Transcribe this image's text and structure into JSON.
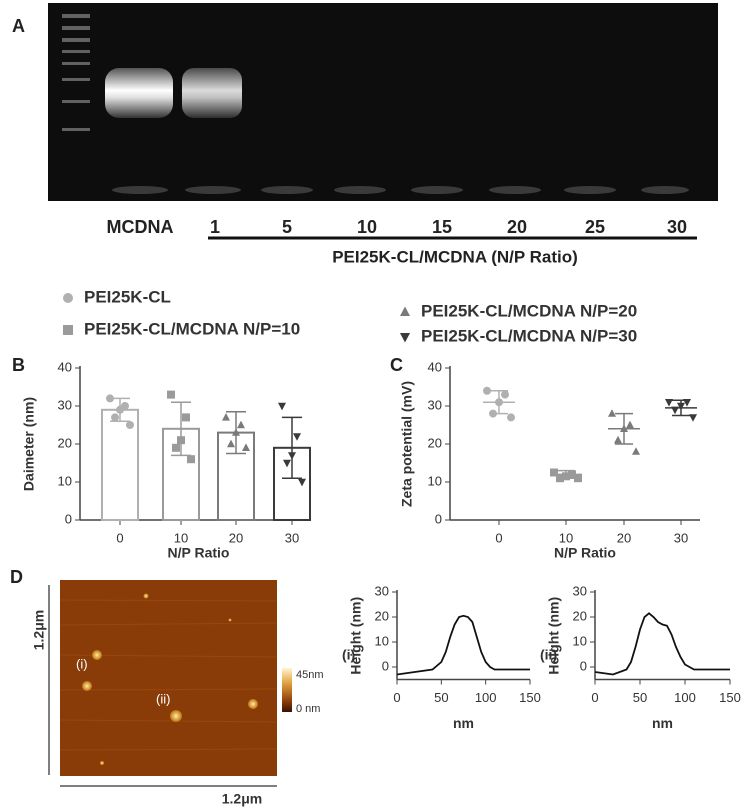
{
  "panels": [
    "A",
    "B",
    "C",
    "D"
  ],
  "gel": {
    "lanes": [
      "MCDNA",
      "1",
      "5",
      "10",
      "15",
      "20",
      "25",
      "30"
    ],
    "caption": "PEI25K-CL/MCDNA  (N/P Ratio)"
  },
  "legend": [
    {
      "name": "PEI25K-CL",
      "marker": "circle",
      "color": "#b0b0b0"
    },
    {
      "name": "PEI25K-CL/MCDNA N/P=10",
      "marker": "square",
      "color": "#9a9a9a"
    },
    {
      "name": "PEI25K-CL/MCDNA  N/P=20",
      "marker": "triangle-up",
      "color": "#7a7a7a"
    },
    {
      "name": "PEI25K-CL/MCDNA  N/P=30",
      "marker": "triangle-down",
      "color": "#3a3a3a"
    }
  ],
  "afm": {
    "scale_y": "1.2μm",
    "scale_x": "1.2μm",
    "spot_labels": [
      "(i)",
      "(ii)"
    ],
    "colorbar_top": "45nm",
    "colorbar_bottom": "0 nm"
  },
  "chart_data": [
    {
      "type": "bar",
      "x_label": "N/P Ratio",
      "y_label": "Daimeter (nm)",
      "categories": [
        "0",
        "10",
        "20",
        "30"
      ],
      "values": [
        29,
        24,
        23,
        19
      ],
      "errors": [
        3,
        7,
        5.5,
        8
      ],
      "points": [
        [
          32,
          30,
          29,
          27,
          25
        ],
        [
          33,
          27,
          21,
          19,
          16
        ],
        [
          27,
          25,
          23,
          20,
          19
        ],
        [
          30,
          22,
          17,
          15,
          10
        ]
      ],
      "colors": [
        "#b0b0b0",
        "#9a9a9a",
        "#7a7a7a",
        "#3a3a3a"
      ],
      "markers": [
        "circle",
        "square",
        "triangle-up",
        "triangle-down"
      ],
      "ylim": [
        0,
        40
      ],
      "yticks": [
        0,
        10,
        20,
        30,
        40
      ]
    },
    {
      "type": "scatter",
      "x_label": "N/P Ratio",
      "y_label": "Zeta potential (mV)",
      "categories": [
        "0",
        "10",
        "20",
        "30"
      ],
      "values": [
        31,
        12,
        24,
        29.5
      ],
      "errors": [
        3,
        1,
        4,
        2
      ],
      "points": [
        [
          34,
          33,
          31,
          28,
          27
        ],
        [
          12.5,
          12,
          11.5,
          11,
          11
        ],
        [
          28,
          25,
          24,
          21,
          18
        ],
        [
          31,
          31,
          30,
          29,
          27
        ]
      ],
      "colors": [
        "#b0b0b0",
        "#9a9a9a",
        "#7a7a7a",
        "#3a3a3a"
      ],
      "markers": [
        "circle",
        "square",
        "triangle-up",
        "triangle-down"
      ],
      "ylim": [
        0,
        40
      ],
      "yticks": [
        0,
        10,
        20,
        30,
        40
      ]
    },
    {
      "type": "line",
      "title": "(i)",
      "x_label": "nm",
      "y_label": "Height (nm)",
      "x": [
        0,
        20,
        40,
        50,
        55,
        60,
        65,
        70,
        75,
        80,
        85,
        90,
        95,
        100,
        105,
        110,
        120,
        130,
        150
      ],
      "values": [
        -3,
        -2,
        -1,
        2,
        6,
        12,
        17,
        20,
        20.5,
        20,
        18,
        12,
        6,
        2,
        0,
        -1,
        -1,
        -1,
        -1
      ],
      "color": "#111111",
      "xlim": [
        0,
        150
      ],
      "xticks": [
        0,
        50,
        100,
        150
      ],
      "ylim": [
        -5,
        30
      ],
      "yticks": [
        0,
        10,
        20,
        30
      ]
    },
    {
      "type": "line",
      "title": "(ii)",
      "x_label": "nm",
      "y_label": "Height (nm)",
      "x": [
        0,
        20,
        35,
        40,
        45,
        50,
        55,
        60,
        65,
        70,
        75,
        80,
        85,
        90,
        95,
        100,
        105,
        110,
        125,
        150
      ],
      "values": [
        -2,
        -3,
        -1,
        2,
        8,
        15,
        20,
        21.5,
        20,
        18,
        17,
        16.5,
        13,
        8,
        4,
        1,
        0,
        -1,
        -1,
        -1
      ],
      "color": "#111111",
      "xlim": [
        0,
        150
      ],
      "xticks": [
        0,
        50,
        100,
        150
      ],
      "ylim": [
        -5,
        30
      ],
      "yticks": [
        0,
        10,
        20,
        30
      ]
    }
  ]
}
